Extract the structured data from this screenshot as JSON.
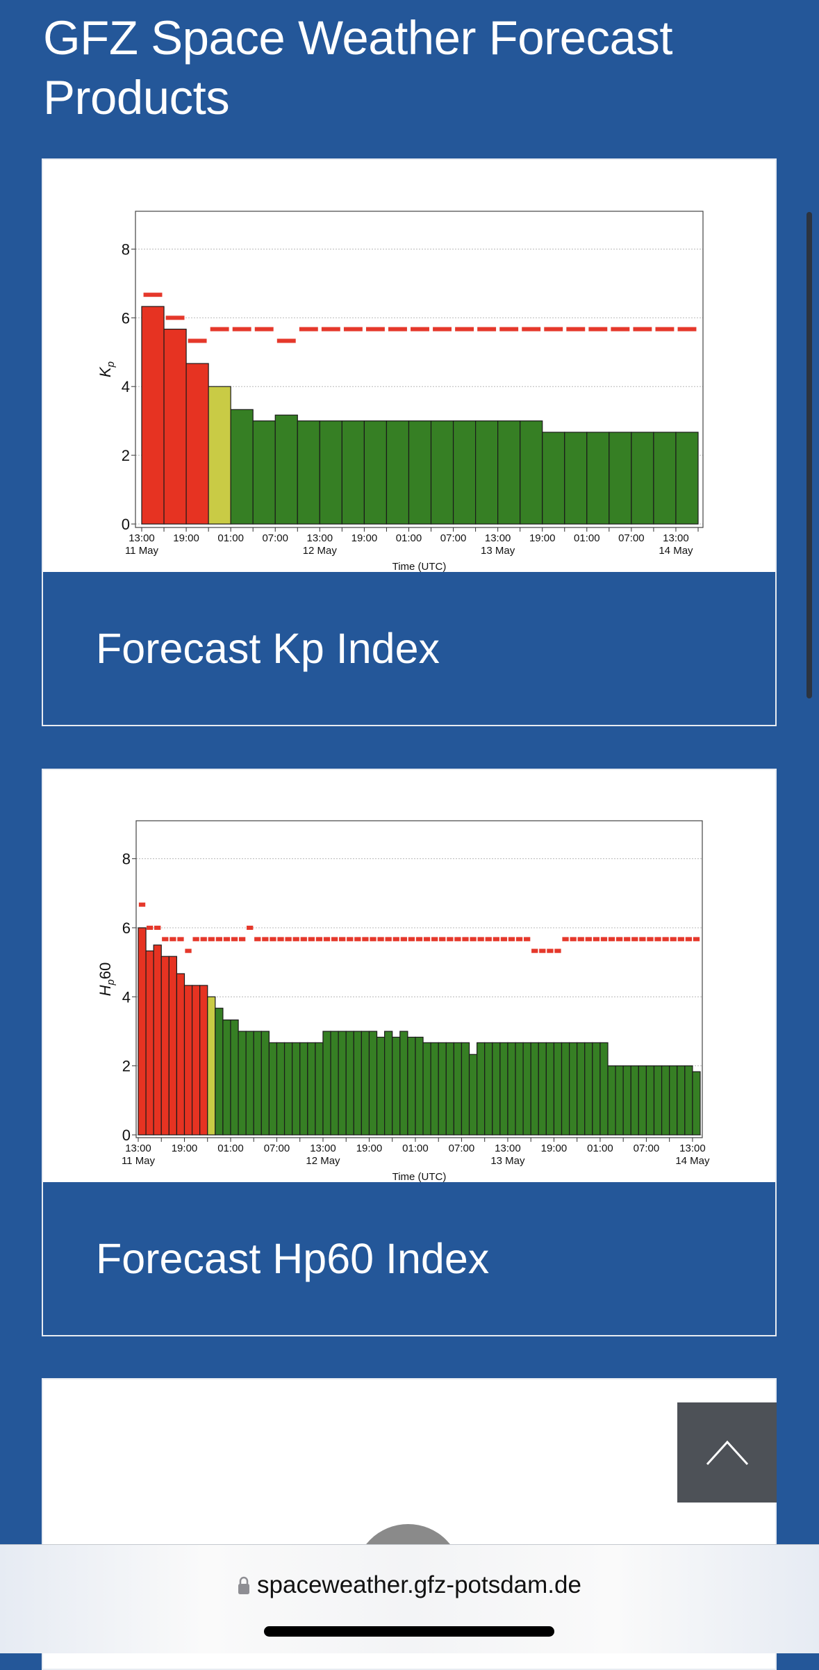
{
  "page": {
    "title": "GFZ Space Weather Forecast Products"
  },
  "cards": [
    {
      "caption": "Forecast Kp Index"
    },
    {
      "caption": "Forecast Hp60 Index"
    }
  ],
  "browser": {
    "url": "spaceweather.gfz-potsdam.de",
    "lock_icon": "lock-icon"
  },
  "scroll_top": {
    "icon": "chevron-up-icon"
  },
  "colors": {
    "background": "#245799",
    "storm": "#e63322",
    "active": "#c9cb45",
    "quiet": "#367f24",
    "threshold": "#e5382b"
  },
  "chart_data": [
    {
      "type": "bar",
      "title": "",
      "ylabel": "Kp",
      "ylabel_main": "K",
      "ylabel_sub": "p",
      "ylabel_suffix": "",
      "xlabel": "Time (UTC)",
      "ylim": [
        0,
        9.1
      ],
      "yticks": [
        0,
        2,
        4,
        6,
        8
      ],
      "grid": true,
      "bar_hours": 3,
      "start": "11 May 13:00",
      "x_tick_labels": [
        "13:00",
        "19:00",
        "01:00",
        "07:00",
        "13:00",
        "19:00",
        "01:00",
        "07:00",
        "13:00",
        "19:00",
        "01:00",
        "07:00",
        "13:00"
      ],
      "x_tick_step_hours": 6,
      "x_date_labels": [
        {
          "tick": 0,
          "label": "11 May"
        },
        {
          "tick": 4,
          "label": "12 May"
        },
        {
          "tick": 8,
          "label": "13 May"
        },
        {
          "tick": 12,
          "label": "14 May"
        }
      ],
      "values": [
        6.33,
        5.67,
        4.67,
        4.0,
        3.33,
        3.0,
        3.17,
        3.0,
        3.0,
        3.0,
        3.0,
        3.0,
        3.0,
        3.0,
        3.0,
        3.0,
        3.0,
        3.0,
        2.67,
        2.67,
        2.67,
        2.67,
        2.67,
        2.67,
        2.67
      ],
      "upper_range": [
        6.67,
        6.0,
        5.33,
        5.67,
        5.67,
        5.67,
        5.33,
        5.67,
        5.67,
        5.67,
        5.67,
        5.67,
        5.67,
        5.67,
        5.67,
        5.67,
        5.67,
        5.67,
        5.67,
        5.67,
        5.67,
        5.67,
        5.67,
        5.67,
        5.67
      ]
    },
    {
      "type": "bar",
      "title": "",
      "ylabel": "Hp60",
      "ylabel_main": "H",
      "ylabel_sub": "p",
      "ylabel_suffix": "60",
      "xlabel": "Time (UTC)",
      "ylim": [
        0,
        9.1
      ],
      "yticks": [
        0,
        2,
        4,
        6,
        8
      ],
      "grid": true,
      "bar_hours": 1,
      "start": "11 May 13:00",
      "x_tick_labels": [
        "13:00",
        "19:00",
        "01:00",
        "07:00",
        "13:00",
        "19:00",
        "01:00",
        "07:00",
        "13:00",
        "19:00",
        "01:00",
        "07:00",
        "13:00"
      ],
      "x_tick_step_hours": 6,
      "x_date_labels": [
        {
          "tick": 0,
          "label": "11 May"
        },
        {
          "tick": 4,
          "label": "12 May"
        },
        {
          "tick": 8,
          "label": "13 May"
        },
        {
          "tick": 12,
          "label": "14 May"
        }
      ],
      "values": [
        6.0,
        5.33,
        5.5,
        5.17,
        5.17,
        4.67,
        4.33,
        4.33,
        4.33,
        4.0,
        3.67,
        3.33,
        3.33,
        3.0,
        3.0,
        3.0,
        3.0,
        2.67,
        2.67,
        2.67,
        2.67,
        2.67,
        2.67,
        2.67,
        3.0,
        3.0,
        3.0,
        3.0,
        3.0,
        3.0,
        3.0,
        2.83,
        3.0,
        2.83,
        3.0,
        2.83,
        2.83,
        2.67,
        2.67,
        2.67,
        2.67,
        2.67,
        2.67,
        2.33,
        2.67,
        2.67,
        2.67,
        2.67,
        2.67,
        2.67,
        2.67,
        2.67,
        2.67,
        2.67,
        2.67,
        2.67,
        2.67,
        2.67,
        2.67,
        2.67,
        2.67,
        2.0,
        2.0,
        2.0,
        2.0,
        2.0,
        2.0,
        2.0,
        2.0,
        2.0,
        2.0,
        2.0,
        1.83
      ],
      "upper_range": [
        6.67,
        6.0,
        6.0,
        5.67,
        5.67,
        5.67,
        5.33,
        5.67,
        5.67,
        5.67,
        5.67,
        5.67,
        5.67,
        5.67,
        6.0,
        5.67,
        5.67,
        5.67,
        5.67,
        5.67,
        5.67,
        5.67,
        5.67,
        5.67,
        5.67,
        5.67,
        5.67,
        5.67,
        5.67,
        5.67,
        5.67,
        5.67,
        5.67,
        5.67,
        5.67,
        5.67,
        5.67,
        5.67,
        5.67,
        5.67,
        5.67,
        5.67,
        5.67,
        5.67,
        5.67,
        5.67,
        5.67,
        5.67,
        5.67,
        5.67,
        5.67,
        5.33,
        5.33,
        5.33,
        5.33,
        5.67,
        5.67,
        5.67,
        5.67,
        5.67,
        5.67,
        5.67,
        5.67,
        5.67,
        5.67,
        5.67,
        5.67,
        5.67,
        5.67,
        5.67,
        5.67,
        5.67,
        5.67
      ]
    }
  ]
}
